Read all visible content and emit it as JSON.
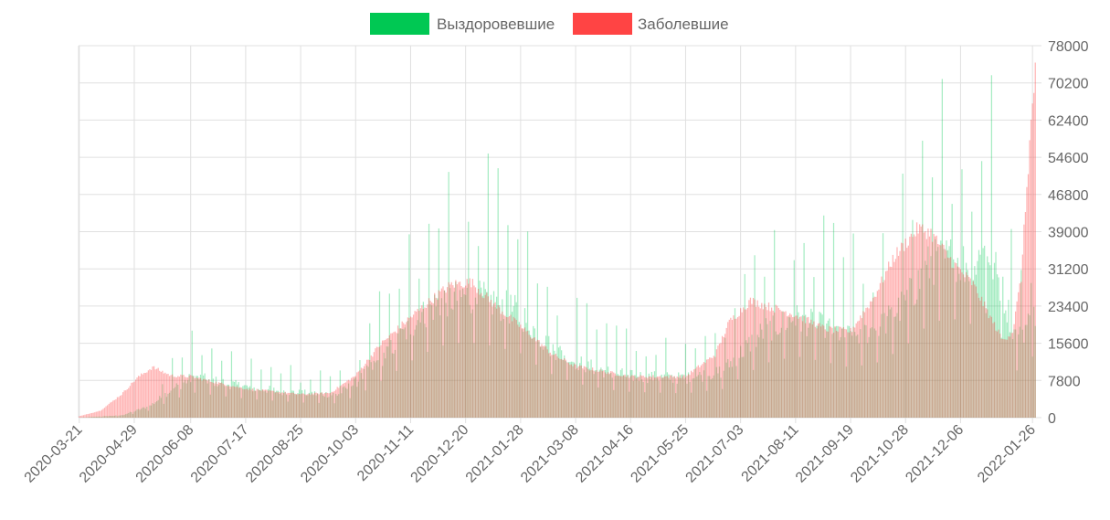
{
  "chart_data": {
    "type": "bar",
    "legend_position": "top-center",
    "grid": true,
    "y_axis_position": "right",
    "ylim": [
      0,
      78000
    ],
    "y_ticks": [
      0,
      7800,
      15600,
      23400,
      31200,
      39000,
      46800,
      54600,
      62400,
      70200,
      78000
    ],
    "x_tick_labels": [
      "2020-03-21",
      "2020-04-29",
      "2020-06-08",
      "2020-07-17",
      "2020-08-25",
      "2020-10-03",
      "2020-11-11",
      "2020-12-20",
      "2021-01-28",
      "2021-03-08",
      "2021-04-16",
      "2021-05-25",
      "2021-07-03",
      "2021-08-11",
      "2021-09-19",
      "2021-10-28",
      "2021-12-06",
      "2022-01-26"
    ],
    "x_range": [
      "2020-03-21",
      "2022-01-28"
    ],
    "series": [
      {
        "name": "Выздоровевшие",
        "color": "#00c853",
        "legend_color": "#00c853",
        "opacity": 0.35,
        "approx_daily_trend": [
          [
            "2020-03-21",
            0
          ],
          [
            "2020-04-20",
            500
          ],
          [
            "2020-05-10",
            2500
          ],
          [
            "2020-05-25",
            6000
          ],
          [
            "2020-06-10",
            8800
          ],
          [
            "2020-07-01",
            7500
          ],
          [
            "2020-07-20",
            6500
          ],
          [
            "2020-08-25",
            5300
          ],
          [
            "2020-09-20",
            5000
          ],
          [
            "2020-10-05",
            8000
          ],
          [
            "2020-10-25",
            14000
          ],
          [
            "2020-11-15",
            21000
          ],
          [
            "2020-12-01",
            25000
          ],
          [
            "2020-12-20",
            26500
          ],
          [
            "2021-01-10",
            25000
          ],
          [
            "2021-01-28",
            22500
          ],
          [
            "2021-02-15",
            16000
          ],
          [
            "2021-03-08",
            12000
          ],
          [
            "2021-04-01",
            9800
          ],
          [
            "2021-04-16",
            9000
          ],
          [
            "2021-05-25",
            8500
          ],
          [
            "2021-06-20",
            10000
          ],
          [
            "2021-07-03",
            14000
          ],
          [
            "2021-07-20",
            19000
          ],
          [
            "2021-08-11",
            21500
          ],
          [
            "2021-09-01",
            19500
          ],
          [
            "2021-09-19",
            17500
          ],
          [
            "2021-10-10",
            19500
          ],
          [
            "2021-10-28",
            25000
          ],
          [
            "2021-11-15",
            33500
          ],
          [
            "2021-12-01",
            34500
          ],
          [
            "2021-12-15",
            32500
          ],
          [
            "2021-12-25",
            37000
          ],
          [
            "2022-01-05",
            27000
          ],
          [
            "2022-01-15",
            16500
          ],
          [
            "2022-01-22",
            20000
          ],
          [
            "2022-01-28",
            22000
          ]
        ]
      },
      {
        "name": "Заболевшие",
        "color": "#ff4444",
        "legend_color": "#ff4444",
        "opacity": 0.4,
        "approx_daily_trend": [
          [
            "2020-03-21",
            300
          ],
          [
            "2020-04-05",
            1500
          ],
          [
            "2020-04-20",
            5000
          ],
          [
            "2020-05-01",
            8500
          ],
          [
            "2020-05-12",
            10800
          ],
          [
            "2020-05-25",
            9000
          ],
          [
            "2020-06-08",
            8800
          ],
          [
            "2020-07-01",
            7200
          ],
          [
            "2020-07-17",
            6200
          ],
          [
            "2020-08-25",
            5000
          ],
          [
            "2020-09-15",
            5300
          ],
          [
            "2020-10-03",
            9000
          ],
          [
            "2020-10-20",
            15500
          ],
          [
            "2020-11-11",
            21500
          ],
          [
            "2020-12-01",
            26500
          ],
          [
            "2020-12-10",
            28500
          ],
          [
            "2020-12-24",
            29000
          ],
          [
            "2021-01-10",
            24000
          ],
          [
            "2021-01-28",
            19500
          ],
          [
            "2021-02-20",
            13500
          ],
          [
            "2021-03-08",
            11000
          ],
          [
            "2021-04-16",
            8800
          ],
          [
            "2021-05-25",
            8800
          ],
          [
            "2021-06-15",
            13500
          ],
          [
            "2021-06-25",
            20500
          ],
          [
            "2021-07-10",
            25000
          ],
          [
            "2021-08-11",
            22000
          ],
          [
            "2021-09-01",
            19000
          ],
          [
            "2021-09-19",
            18500
          ],
          [
            "2021-10-05",
            25500
          ],
          [
            "2021-10-20",
            34500
          ],
          [
            "2021-11-06",
            40500
          ],
          [
            "2021-11-15",
            39500
          ],
          [
            "2021-12-01",
            33000
          ],
          [
            "2021-12-15",
            28500
          ],
          [
            "2021-12-28",
            21000
          ],
          [
            "2022-01-05",
            16500
          ],
          [
            "2022-01-12",
            18500
          ],
          [
            "2022-01-18",
            30000
          ],
          [
            "2022-01-22",
            49500
          ],
          [
            "2022-01-25",
            63000
          ],
          [
            "2022-01-28",
            74000
          ]
        ]
      }
    ]
  }
}
